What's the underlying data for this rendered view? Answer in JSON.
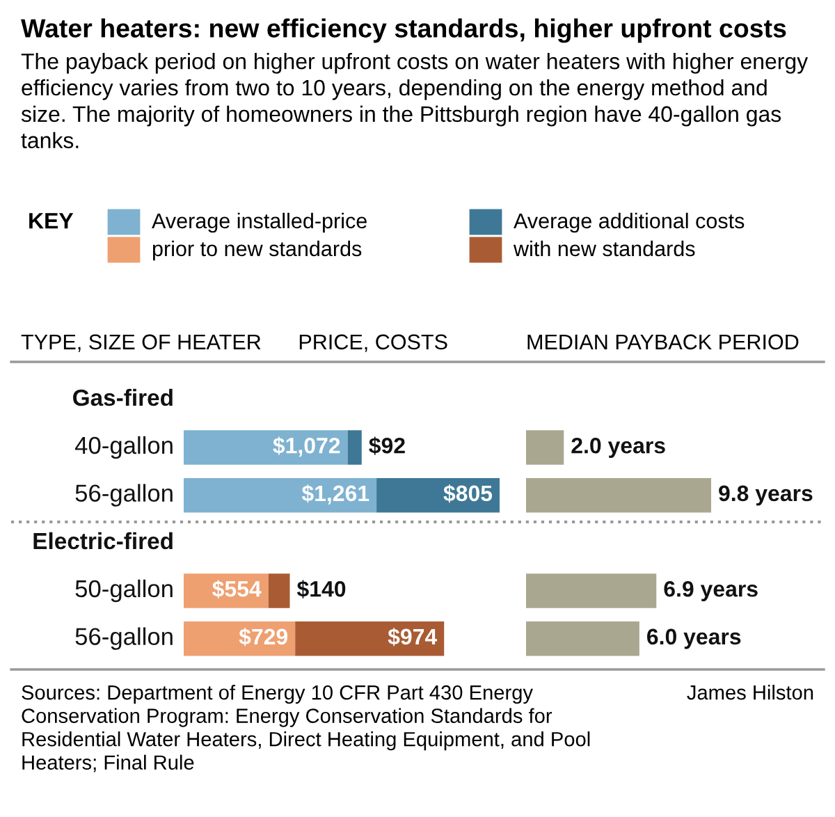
{
  "chart_data": [
    {
      "type": "bar",
      "orientation": "horizontal",
      "stacked": true,
      "title": "PRICE, COSTS",
      "ylabel": "TYPE, SIZE OF HEATER",
      "legend_title": "KEY",
      "legend": "top",
      "categories": [
        "Gas-fired",
        "40-gallon",
        "56-gallon",
        "Electric-fired",
        "50-gallon",
        "56-gallon"
      ],
      "series": [
        {
          "name": "Average installed-price prior to new standards",
          "colors": [
            null,
            "#7fb2d0",
            "#7fb2d0",
            null,
            "#eea071",
            "#eea071"
          ],
          "values": [
            null,
            1072,
            1261,
            null,
            554,
            729
          ],
          "value_labels": [
            null,
            "$1,072",
            "$1,261",
            null,
            "$554",
            "$729"
          ]
        },
        {
          "name": "Average additional costs with new standards",
          "colors": [
            null,
            "#3f7896",
            "#3f7896",
            null,
            "#a95c34",
            "#a95c34"
          ],
          "values": [
            null,
            92,
            805,
            null,
            140,
            974
          ],
          "value_labels": [
            null,
            "$92",
            "$805",
            null,
            "$140",
            "$974"
          ]
        }
      ],
      "annotations": [
        "Water heaters: new efficiency standards, higher upfront costs",
        "The payback period on higher upfront costs on water heaters with higher energy efficiency varies from two to 10 years, depending on the energy method and size. The majority of homeowners in the Pittsburgh region have 40-gallon gas tanks.",
        "Sources: Department of Energy 10 CFR Part 430 Energy Conservation Program: Energy Conservation Standards for Residential Water Heaters, Direct Heating Equipment, and Pool Heaters; Final Rule",
        "James Hilston"
      ]
    },
    {
      "type": "bar",
      "orientation": "horizontal",
      "title": "MEDIAN PAYBACK PERIOD",
      "categories": [
        null,
        null,
        null,
        null,
        null,
        null
      ],
      "series": [
        {
          "color": "#a9a78f",
          "values": [
            null,
            2.0,
            9.8,
            null,
            6.9,
            6.0
          ],
          "value_labels": [
            null,
            "2.0 years",
            "9.8 years",
            null,
            "6.9 years",
            "6.0 years"
          ]
        }
      ]
    }
  ]
}
